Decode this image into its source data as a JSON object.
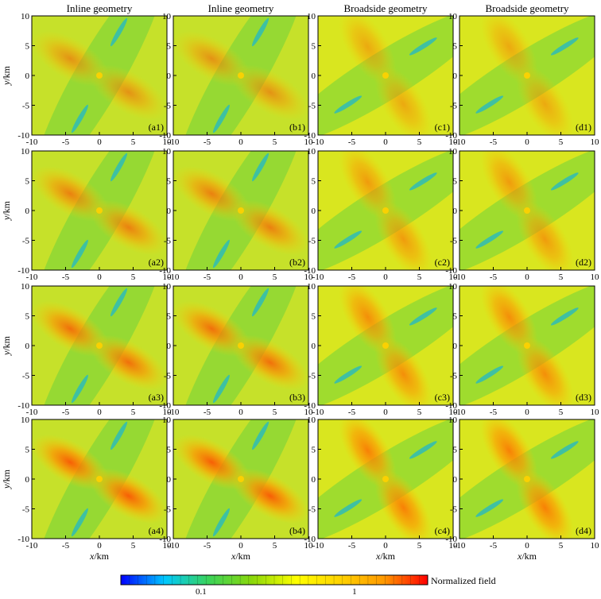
{
  "chart_data": {
    "type": "heatmap",
    "description_columns": [
      "Inline geometry",
      "Inline geometry",
      "Broadside geometry",
      "Broadside geometry"
    ],
    "x_axis": {
      "var": "x",
      "unit": "/km",
      "range": [
        -10,
        10
      ],
      "ticks": [
        -10,
        -5,
        0,
        5,
        10
      ]
    },
    "y_axis": {
      "var": "y",
      "unit": "/km",
      "range": [
        -10,
        10
      ],
      "ticks": [
        -10,
        -5,
        0,
        5,
        10
      ]
    },
    "panels": [
      [
        "(a1)",
        "(b1)",
        "(c1)",
        "(d1)"
      ],
      [
        "(a2)",
        "(b2)",
        "(c2)",
        "(d2)"
      ],
      [
        "(a3)",
        "(b3)",
        "(c3)",
        "(d3)"
      ],
      [
        "(a4)",
        "(b4)",
        "(c4)",
        "(d4)"
      ]
    ],
    "panel_orientation": [
      "inline",
      "inline",
      "broadside",
      "broadside"
    ],
    "colorbar": {
      "label": "Normalized field",
      "scale": "log",
      "range": [
        0.03,
        3
      ],
      "tick_labels": [
        {
          "label": "0.1",
          "value": 0.1
        },
        {
          "label": "1",
          "value": 1
        }
      ],
      "colors": [
        "#0000ff",
        "#00c8ff",
        "#3ad35a",
        "#8bd80a",
        "#ffff00",
        "#ffd300",
        "#ff9900",
        "#ff0000"
      ]
    }
  }
}
